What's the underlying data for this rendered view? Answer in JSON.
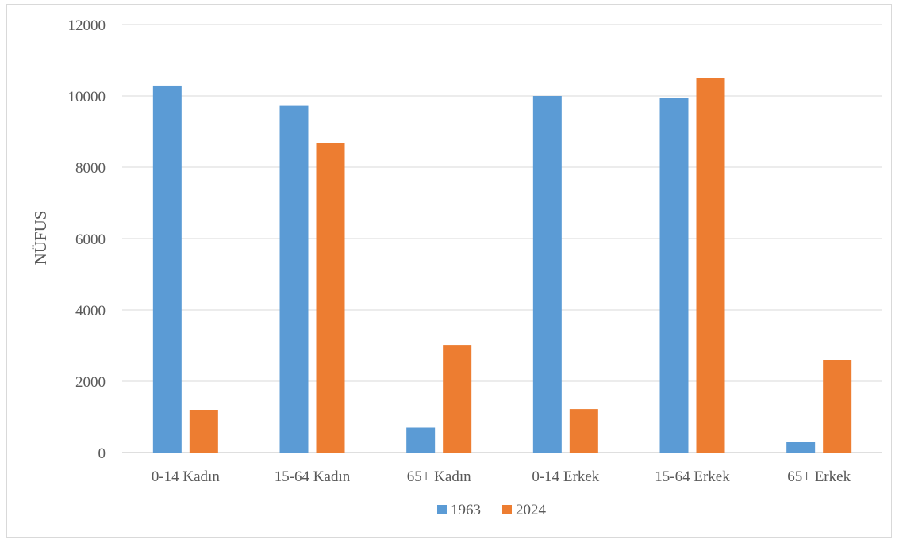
{
  "chart_data": {
    "type": "bar",
    "title": "",
    "xlabel": "",
    "ylabel": "NÜFUS",
    "ylim": [
      0,
      12000
    ],
    "yticks": [
      0,
      2000,
      4000,
      6000,
      8000,
      10000,
      12000
    ],
    "categories": [
      "0-14 Kadın",
      "15-64 Kadın",
      "65+ Kadın",
      "0-14 Erkek",
      "15-64 Erkek",
      "65+ Erkek"
    ],
    "series": [
      {
        "name": "1963",
        "color": "#5b9bd5",
        "values": [
          10290,
          9720,
          700,
          10000,
          9950,
          310
        ]
      },
      {
        "name": "2024",
        "color": "#ed7d31",
        "values": [
          1200,
          8680,
          3020,
          1220,
          10500,
          2600
        ]
      }
    ],
    "grid": true,
    "legend": "bottom"
  }
}
